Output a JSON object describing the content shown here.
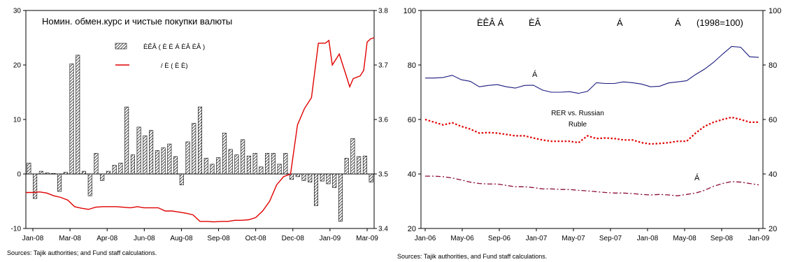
{
  "chart_data": [
    {
      "type": "bar",
      "title": "Номин. обмен.курс и чистые покупки валюты",
      "x_tick_labels": [
        "Jan-08",
        "Mar-08",
        "Apr-08",
        "Jun-08",
        "Aug-08",
        "Sep-08",
        "Oct-08",
        "Dec-08",
        "Jan-09",
        "Mar-09"
      ],
      "y_left_ticks": [
        "30",
        "20",
        "10",
        "0",
        "-10"
      ],
      "y_right_ticks": [
        "3.8",
        "3.7",
        "3.6",
        "3.5",
        "3.4"
      ],
      "ylim_left": [
        -10,
        30
      ],
      "ylim_right": [
        3.4,
        3.8
      ],
      "legend": [
        "ÈÊÂ  (  È È Á  ÈÂ ÈÂ  )",
        "/  È  (  È È)"
      ],
      "bars_color": "#000000",
      "line_color": "#e00000",
      "series": [
        {
          "kind": "bars",
          "axis": "left",
          "values": [
            2.0,
            -4.5,
            0.5,
            0.2,
            0.1,
            -3.2,
            0.3,
            20.2,
            21.8,
            0.5,
            -4.0,
            3.8,
            -1.2,
            0.5,
            1.6,
            2.0,
            12.3,
            3.5,
            8.6,
            7.0,
            8.0,
            4.3,
            4.8,
            5.5,
            3.2,
            -2.0,
            5.9,
            9.3,
            12.3,
            2.9,
            1.8,
            3.0,
            7.5,
            4.5,
            3.5,
            6.3,
            3.3,
            3.8,
            1.3,
            3.8,
            3.8,
            1.8,
            3.8,
            -1.0,
            -0.5,
            -1.2,
            -1.5,
            -5.8,
            -1.3,
            -1.8,
            -2.5,
            -8.7,
            2.9,
            6.5,
            3.2,
            3.3,
            -1.5
          ]
        },
        {
          "kind": "line",
          "axis": "right",
          "x_frac": [
            0,
            0.02,
            0.04,
            0.06,
            0.08,
            0.1,
            0.12,
            0.14,
            0.16,
            0.18,
            0.2,
            0.22,
            0.24,
            0.26,
            0.28,
            0.3,
            0.32,
            0.34,
            0.36,
            0.38,
            0.4,
            0.42,
            0.44,
            0.46,
            0.48,
            0.5,
            0.52,
            0.54,
            0.56,
            0.58,
            0.6,
            0.62,
            0.64,
            0.66,
            0.68,
            0.7,
            0.72,
            0.74,
            0.76,
            0.78,
            0.8,
            0.82,
            0.84,
            0.86,
            0.87,
            0.88,
            0.9,
            0.92,
            0.93,
            0.94,
            0.96,
            0.97,
            0.98,
            0.99,
            1.0
          ],
          "values": [
            3.466,
            3.466,
            3.467,
            3.465,
            3.46,
            3.457,
            3.452,
            3.44,
            3.437,
            3.435,
            3.439,
            3.44,
            3.44,
            3.44,
            3.439,
            3.438,
            3.44,
            3.438,
            3.438,
            3.438,
            3.432,
            3.432,
            3.43,
            3.428,
            3.425,
            3.413,
            3.413,
            3.412,
            3.413,
            3.413,
            3.415,
            3.415,
            3.416,
            3.42,
            3.432,
            3.45,
            3.48,
            3.495,
            3.5,
            3.59,
            3.62,
            3.64,
            3.74,
            3.74,
            3.745,
            3.7,
            3.72,
            3.68,
            3.66,
            3.675,
            3.68,
            3.69,
            3.742,
            3.748,
            3.75
          ]
        }
      ]
    },
    {
      "type": "line",
      "right_top_label": "(1998=100)",
      "header_chars": [
        "ÈÊÂ Á",
        "ÈÂ",
        "Á",
        "Á"
      ],
      "x_tick_labels": [
        "Jan-06",
        "May-06",
        "Sep-06",
        "Jan-07",
        "May-07",
        "Sep-07",
        "Jan-08",
        "May-08",
        "Sep-08",
        "Jan-09"
      ],
      "y_ticks": [
        "100",
        "80",
        "60",
        "40",
        "20"
      ],
      "ylim": [
        20,
        100
      ],
      "annotations": [
        "Á",
        "RER vs. Russian",
        "Ruble",
        "Á"
      ],
      "series": [
        {
          "color": "#1a1a80",
          "style": "solid",
          "x": [
            0,
            1,
            2,
            3,
            4,
            5,
            6,
            7,
            8,
            9,
            10,
            11,
            12,
            13,
            14,
            15,
            16,
            17,
            18,
            19,
            20,
            21,
            22,
            23,
            24,
            25,
            26,
            27,
            28,
            29,
            30,
            31,
            32,
            33,
            34,
            35,
            36,
            37
          ],
          "values": [
            75.2,
            75.2,
            75.4,
            76.2,
            74.6,
            74.0,
            72.0,
            72.5,
            72.8,
            72.0,
            71.5,
            72.5,
            72.6,
            70.8,
            70.0,
            70.0,
            70.2,
            69.6,
            70.3,
            73.5,
            73.2,
            73.2,
            73.8,
            73.5,
            73.0,
            72.0,
            72.2,
            73.4,
            73.8,
            74.2,
            76.5,
            78.5,
            81.0,
            84.0,
            86.8,
            86.5,
            83.0,
            82.8
          ]
        },
        {
          "color": "#e00000",
          "style": "dotted",
          "x": [
            0,
            1,
            2,
            3,
            4,
            5,
            6,
            7,
            8,
            9,
            10,
            11,
            12,
            13,
            14,
            15,
            16,
            17,
            18,
            19,
            20,
            21,
            22,
            23,
            24,
            25,
            26,
            27,
            28,
            29,
            30,
            31,
            32,
            33,
            34,
            35,
            36,
            37
          ],
          "values": [
            60.0,
            59.0,
            58.0,
            58.8,
            57.5,
            56.5,
            55.0,
            55.2,
            55.0,
            54.5,
            54.0,
            54.0,
            53.2,
            52.5,
            52.0,
            52.0,
            52.0,
            51.5,
            54.0,
            53.0,
            53.2,
            53.0,
            52.5,
            52.5,
            51.5,
            51.0,
            51.2,
            51.5,
            52.0,
            52.0,
            55.0,
            57.5,
            59.0,
            60.0,
            60.8,
            60.0,
            59.0,
            59.0
          ]
        },
        {
          "color": "#8a0a3a",
          "style": "dashdot",
          "x": [
            0,
            1,
            2,
            3,
            4,
            5,
            6,
            7,
            8,
            9,
            10,
            11,
            12,
            13,
            14,
            15,
            16,
            17,
            18,
            19,
            20,
            21,
            22,
            23,
            24,
            25,
            26,
            27,
            28,
            29,
            30,
            31,
            32,
            33,
            34,
            35,
            36,
            37
          ],
          "values": [
            39.2,
            39.2,
            39.0,
            38.5,
            37.8,
            37.0,
            36.5,
            36.3,
            36.3,
            35.8,
            35.3,
            35.3,
            35.0,
            34.5,
            34.5,
            34.3,
            34.3,
            34.0,
            33.8,
            33.5,
            33.2,
            33.0,
            33.0,
            32.8,
            32.5,
            32.3,
            32.5,
            32.3,
            32.0,
            32.5,
            33.0,
            34.0,
            35.5,
            36.5,
            37.2,
            37.0,
            36.5,
            36.0
          ]
        }
      ]
    }
  ],
  "sources_left": "Sources: Tajik authorities; and Fund staff calculations.",
  "sources_right": "Sources: Tajik authorities, and Fund staff calculations."
}
